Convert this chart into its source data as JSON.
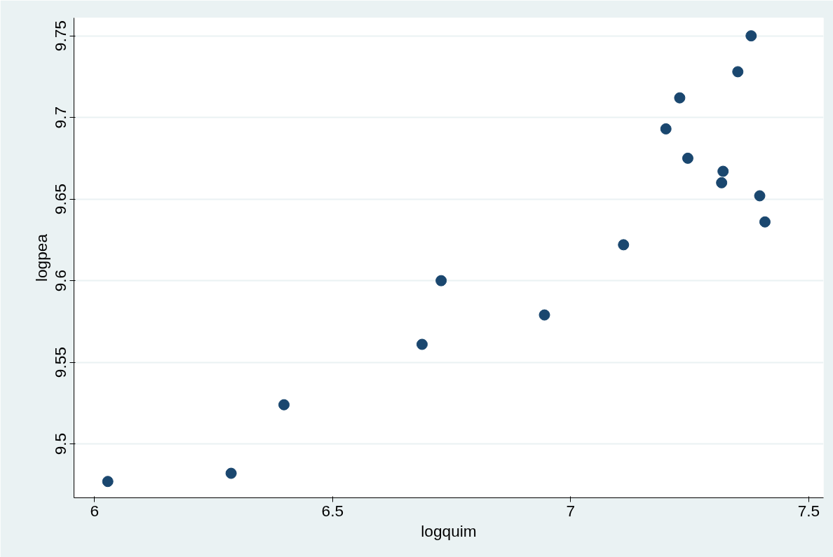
{
  "chart_data": {
    "type": "scatter",
    "xlabel": "logquim",
    "ylabel": "logpea",
    "x": [
      6.028,
      6.287,
      6.398,
      6.688,
      6.728,
      6.945,
      7.111,
      7.2,
      7.229,
      7.246,
      7.317,
      7.32,
      7.351,
      7.379,
      7.397,
      7.408
    ],
    "values": [
      9.477,
      9.482,
      9.524,
      9.561,
      9.6,
      9.579,
      9.622,
      9.693,
      9.712,
      9.675,
      9.66,
      9.667,
      9.728,
      9.75,
      9.652,
      9.636
    ],
    "color": "#1a476f",
    "marker": "circle",
    "grid": "y",
    "xlim": [
      5.957,
      7.531
    ],
    "ylim": [
      9.467,
      9.761
    ],
    "xticks": [
      6,
      6.5,
      7,
      7.5
    ],
    "yticks": [
      9.5,
      9.55,
      9.6,
      9.65,
      9.7,
      9.75
    ]
  }
}
